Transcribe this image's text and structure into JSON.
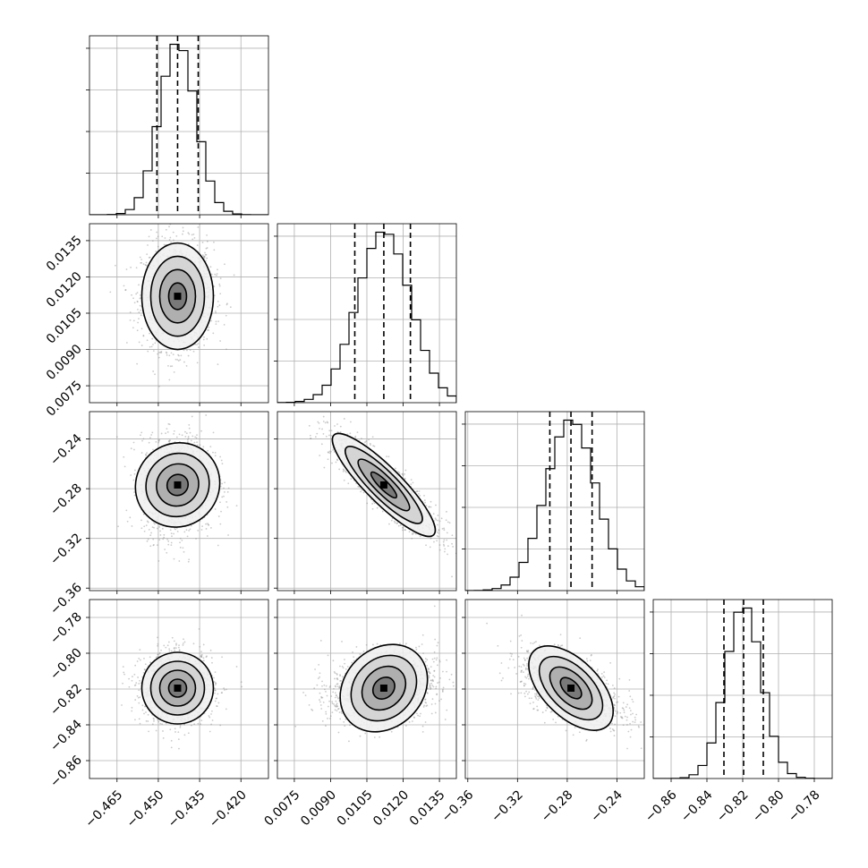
{
  "chart_data": {
    "type": "corner",
    "grid": true,
    "parameters": [
      {
        "index": 0,
        "range": [
          -0.475,
          -0.41
        ],
        "ticks": [
          -0.465,
          -0.45,
          -0.435,
          -0.42
        ],
        "tick_labels": [
          "−0.465",
          "−0.450",
          "−0.435",
          "−0.420"
        ],
        "mean": -0.443,
        "sigma": 0.0065,
        "quantiles": [
          -0.4505,
          -0.443,
          -0.4355
        ]
      },
      {
        "index": 1,
        "range": [
          0.0068,
          0.0142
        ],
        "ticks": [
          0.0075,
          0.009,
          0.0105,
          0.012,
          0.0135
        ],
        "tick_labels": [
          "0.0075",
          "0.0090",
          "0.0105",
          "0.0120",
          "0.0135"
        ],
        "mean": 0.0112,
        "sigma": 0.0011,
        "quantiles": [
          0.01,
          0.0112,
          0.0123
        ]
      },
      {
        "index": 2,
        "range": [
          -0.362,
          -0.218
        ],
        "ticks": [
          -0.36,
          -0.32,
          -0.28,
          -0.24
        ],
        "tick_labels": [
          "−0.36",
          "−0.32",
          "−0.28",
          "−0.24"
        ],
        "mean": -0.277,
        "sigma": 0.02,
        "quantiles": [
          -0.294,
          -0.277,
          -0.26
        ]
      },
      {
        "index": 3,
        "range": [
          -0.87,
          -0.77
        ],
        "ticks": [
          -0.86,
          -0.84,
          -0.82,
          -0.8,
          -0.78
        ],
        "tick_labels": [
          "−0.86",
          "−0.84",
          "−0.82",
          "−0.80",
          "−0.78"
        ],
        "mean": -0.8195,
        "sigma": 0.01,
        "quantiles": [
          -0.8305,
          -0.8195,
          -0.8085
        ]
      }
    ],
    "correlations": {
      "1_0": 0.0,
      "2_0": 0.05,
      "2_1": -0.88,
      "3_0": 0.0,
      "3_1": 0.2,
      "3_2": -0.55
    },
    "contour_levels_sigma": [
      0.5,
      1.0,
      1.5,
      2.0
    ]
  }
}
